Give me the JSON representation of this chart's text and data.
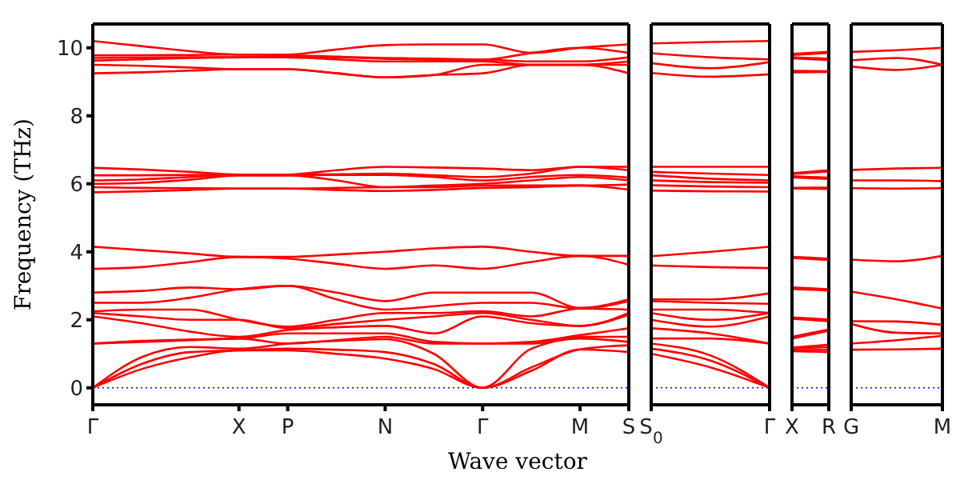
{
  "chart_data": [
    {
      "type": "line",
      "xlabel": "Wave vector",
      "ylabel": "Frequency (THz)",
      "categories": [
        "Γ",
        null,
        null,
        "X",
        "P",
        null,
        "N",
        null,
        "Γ",
        null,
        "M",
        "S"
      ],
      "ylim": [
        -0.5,
        10.7
      ],
      "yticks": [
        0,
        2,
        4,
        6,
        8,
        10
      ],
      "ref_lines": [
        {
          "axis": "y",
          "value": 0,
          "color": "#0000ff",
          "line_style": "dotted"
        }
      ],
      "series": [
        {
          "color": "#ff0000",
          "values": [
            0,
            0.55,
            0.9,
            1.1,
            1.1,
            1.0,
            0.86,
            0.55,
            0,
            0.5,
            1.13,
            1.05
          ]
        },
        {
          "color": "#ff0000",
          "values": [
            0,
            0.7,
            1.05,
            1.1,
            1.15,
            1.12,
            1.05,
            0.7,
            0,
            0.6,
            1.13,
            1.25
          ]
        },
        {
          "color": "#ff0000",
          "values": [
            0,
            0.9,
            1.2,
            1.15,
            1.3,
            1.38,
            1.43,
            1.0,
            0,
            1.15,
            1.45,
            1.35
          ]
        },
        {
          "color": "#ff0000",
          "values": [
            1.3,
            1.35,
            1.4,
            1.45,
            1.3,
            1.4,
            1.5,
            1.3,
            1.3,
            1.3,
            1.5,
            1.5
          ]
        },
        {
          "color": "#ff0000",
          "values": [
            1.3,
            1.38,
            1.42,
            1.45,
            1.6,
            1.6,
            1.6,
            1.35,
            1.3,
            1.35,
            1.55,
            1.75
          ]
        },
        {
          "color": "#ff0000",
          "values": [
            2.1,
            1.9,
            1.65,
            1.5,
            1.7,
            1.78,
            1.82,
            1.6,
            2.1,
            1.9,
            1.82,
            2.15
          ]
        },
        {
          "color": "#ff0000",
          "values": [
            2.2,
            2.1,
            2.0,
            2.0,
            1.75,
            1.88,
            2.0,
            2.1,
            2.2,
            2.0,
            1.82,
            2.2
          ]
        },
        {
          "color": "#ff0000",
          "values": [
            2.25,
            2.3,
            2.3,
            2.0,
            1.8,
            2.0,
            2.2,
            2.2,
            2.25,
            2.1,
            2.33,
            2.3
          ]
        },
        {
          "color": "#ff0000",
          "values": [
            2.5,
            2.5,
            2.65,
            2.9,
            3.0,
            2.6,
            2.3,
            2.4,
            2.5,
            2.5,
            2.33,
            2.55
          ]
        },
        {
          "color": "#ff0000",
          "values": [
            2.8,
            2.85,
            2.95,
            2.9,
            3.0,
            2.8,
            2.55,
            2.8,
            2.8,
            2.8,
            2.35,
            2.6
          ]
        },
        {
          "color": "#ff0000",
          "values": [
            3.5,
            3.55,
            3.7,
            3.85,
            3.8,
            3.65,
            3.5,
            3.6,
            3.5,
            3.7,
            3.88,
            3.62
          ]
        },
        {
          "color": "#ff0000",
          "values": [
            4.15,
            4.05,
            3.95,
            3.85,
            3.85,
            3.92,
            4.0,
            4.1,
            4.15,
            4.0,
            3.88,
            3.88
          ]
        },
        {
          "color": "#ff0000",
          "values": [
            5.75,
            5.78,
            5.82,
            5.86,
            5.86,
            5.82,
            5.79,
            5.82,
            5.88,
            5.9,
            5.95,
            5.83
          ]
        },
        {
          "color": "#ff0000",
          "values": [
            5.9,
            5.88,
            5.87,
            5.86,
            5.86,
            5.88,
            5.9,
            5.9,
            5.95,
            5.95,
            5.95,
            5.98
          ]
        },
        {
          "color": "#ff0000",
          "values": [
            6.0,
            6.03,
            6.12,
            6.25,
            6.25,
            6.1,
            5.9,
            5.95,
            6.0,
            6.1,
            6.2,
            6.1
          ]
        },
        {
          "color": "#ff0000",
          "values": [
            6.1,
            6.13,
            6.2,
            6.25,
            6.25,
            6.26,
            6.26,
            6.2,
            6.1,
            6.2,
            6.26,
            6.18
          ]
        },
        {
          "color": "#ff0000",
          "values": [
            6.25,
            6.25,
            6.26,
            6.27,
            6.27,
            6.28,
            6.3,
            6.25,
            6.2,
            6.3,
            6.5,
            6.4
          ]
        },
        {
          "color": "#ff0000",
          "values": [
            6.47,
            6.42,
            6.35,
            6.27,
            6.27,
            6.4,
            6.5,
            6.48,
            6.45,
            6.4,
            6.5,
            6.5
          ]
        },
        {
          "color": "#ff0000",
          "values": [
            9.25,
            9.28,
            9.33,
            9.37,
            9.37,
            9.25,
            9.13,
            9.2,
            9.25,
            9.5,
            9.5,
            9.25
          ]
        },
        {
          "color": "#ff0000",
          "values": [
            9.5,
            9.47,
            9.42,
            9.37,
            9.37,
            9.25,
            9.13,
            9.2,
            9.5,
            9.5,
            9.5,
            9.5
          ]
        },
        {
          "color": "#ff0000",
          "values": [
            9.62,
            9.66,
            9.7,
            9.72,
            9.72,
            9.66,
            9.6,
            9.6,
            9.6,
            9.5,
            9.5,
            9.6
          ]
        },
        {
          "color": "#ff0000",
          "values": [
            9.7,
            9.71,
            9.72,
            9.72,
            9.75,
            9.72,
            9.68,
            9.65,
            9.65,
            9.6,
            9.6,
            9.72
          ]
        },
        {
          "color": "#ff0000",
          "values": [
            9.78,
            9.78,
            9.79,
            9.8,
            9.78,
            9.74,
            9.7,
            9.68,
            9.65,
            9.85,
            10.0,
            9.85
          ]
        },
        {
          "color": "#ff0000",
          "values": [
            10.2,
            10.05,
            9.9,
            9.8,
            9.8,
            9.95,
            10.08,
            10.1,
            10.1,
            9.85,
            10.0,
            10.1
          ]
        }
      ]
    },
    {
      "type": "line",
      "tick_labels": "x",
      "categories": [
        "S$_{0}$",
        null,
        "Γ"
      ],
      "ylim": [
        -0.5,
        10.7
      ],
      "yticks": [
        0,
        2,
        4,
        6,
        8,
        10
      ],
      "ref_lines": [
        {
          "axis": "y",
          "value": 0,
          "color": "#0000ff",
          "line_style": "dotted"
        }
      ],
      "series": [
        {
          "color": "#ff0000",
          "values": [
            1.0,
            0.6,
            0
          ]
        },
        {
          "color": "#ff0000",
          "values": [
            1.15,
            0.8,
            0
          ]
        },
        {
          "color": "#ff0000",
          "values": [
            1.3,
            0.95,
            0
          ]
        },
        {
          "color": "#ff0000",
          "values": [
            1.45,
            1.45,
            1.3
          ]
        },
        {
          "color": "#ff0000",
          "values": [
            1.75,
            1.6,
            1.3
          ]
        },
        {
          "color": "#ff0000",
          "values": [
            2.0,
            1.8,
            2.1
          ]
        },
        {
          "color": "#ff0000",
          "values": [
            2.2,
            2.0,
            2.2
          ]
        },
        {
          "color": "#ff0000",
          "values": [
            2.3,
            2.3,
            2.2
          ]
        },
        {
          "color": "#ff0000",
          "values": [
            2.55,
            2.5,
            2.47
          ]
        },
        {
          "color": "#ff0000",
          "values": [
            2.6,
            2.6,
            2.78
          ]
        },
        {
          "color": "#ff0000",
          "values": [
            3.6,
            3.55,
            3.52
          ]
        },
        {
          "color": "#ff0000",
          "values": [
            3.87,
            4.0,
            4.15
          ]
        },
        {
          "color": "#ff0000",
          "values": [
            5.8,
            5.78,
            5.77
          ]
        },
        {
          "color": "#ff0000",
          "values": [
            5.96,
            5.92,
            5.9
          ]
        },
        {
          "color": "#ff0000",
          "values": [
            6.1,
            6.05,
            6.03
          ]
        },
        {
          "color": "#ff0000",
          "values": [
            6.25,
            6.15,
            6.1
          ]
        },
        {
          "color": "#ff0000",
          "values": [
            6.35,
            6.3,
            6.26
          ]
        },
        {
          "color": "#ff0000",
          "values": [
            6.5,
            6.5,
            6.5
          ]
        },
        {
          "color": "#ff0000",
          "values": [
            9.26,
            9.15,
            9.22
          ]
        },
        {
          "color": "#ff0000",
          "values": [
            9.55,
            9.4,
            9.58
          ]
        },
        {
          "color": "#ff0000",
          "values": [
            9.84,
            9.72,
            9.66
          ]
        },
        {
          "color": "#ff0000",
          "values": [
            10.13,
            10.17,
            10.2
          ]
        }
      ]
    },
    {
      "type": "line",
      "tick_labels": "x",
      "categories": [
        "X",
        "R"
      ],
      "ylim": [
        -0.5,
        10.7
      ],
      "yticks": [
        0,
        2,
        4,
        6,
        8,
        10
      ],
      "ref_lines": [
        {
          "axis": "y",
          "value": 0,
          "color": "#0000ff",
          "line_style": "dotted"
        }
      ],
      "series": [
        {
          "color": "#ff0000",
          "values": [
            1.08,
            1.05
          ]
        },
        {
          "color": "#ff0000",
          "values": [
            1.1,
            1.12
          ]
        },
        {
          "color": "#ff0000",
          "values": [
            1.15,
            1.2
          ]
        },
        {
          "color": "#ff0000",
          "values": [
            1.18,
            1.27
          ]
        },
        {
          "color": "#ff0000",
          "values": [
            1.45,
            1.68
          ]
        },
        {
          "color": "#ff0000",
          "values": [
            1.5,
            1.72
          ]
        },
        {
          "color": "#ff0000",
          "values": [
            2.03,
            1.96
          ]
        },
        {
          "color": "#ff0000",
          "values": [
            2.07,
            2.01
          ]
        },
        {
          "color": "#ff0000",
          "values": [
            2.91,
            2.86
          ]
        },
        {
          "color": "#ff0000",
          "values": [
            2.95,
            2.9
          ]
        },
        {
          "color": "#ff0000",
          "values": [
            3.82,
            3.76
          ]
        },
        {
          "color": "#ff0000",
          "values": [
            3.85,
            3.8
          ]
        },
        {
          "color": "#ff0000",
          "values": [
            5.86,
            5.85
          ]
        },
        {
          "color": "#ff0000",
          "values": [
            5.88,
            5.89
          ]
        },
        {
          "color": "#ff0000",
          "values": [
            6.19,
            6.14
          ]
        },
        {
          "color": "#ff0000",
          "values": [
            6.22,
            6.18
          ]
        },
        {
          "color": "#ff0000",
          "values": [
            6.29,
            6.36
          ]
        },
        {
          "color": "#ff0000",
          "values": [
            6.31,
            6.4
          ]
        },
        {
          "color": "#ff0000",
          "values": [
            9.28,
            9.29
          ]
        },
        {
          "color": "#ff0000",
          "values": [
            9.32,
            9.31
          ]
        },
        {
          "color": "#ff0000",
          "values": [
            9.69,
            9.64
          ]
        },
        {
          "color": "#ff0000",
          "values": [
            9.72,
            9.68
          ]
        },
        {
          "color": "#ff0000",
          "values": [
            9.79,
            9.85
          ]
        },
        {
          "color": "#ff0000",
          "values": [
            9.82,
            9.88
          ]
        }
      ]
    },
    {
      "type": "line",
      "tick_labels": "x",
      "categories": [
        "G",
        null,
        "M"
      ],
      "ylim": [
        -0.5,
        10.7
      ],
      "yticks": [
        0,
        2,
        4,
        6,
        8,
        10
      ],
      "ref_lines": [
        {
          "axis": "y",
          "value": 0,
          "color": "#0000ff",
          "line_style": "dotted"
        }
      ],
      "series": [
        {
          "color": "#ff0000",
          "values": [
            1.12,
            1.13,
            1.15
          ]
        },
        {
          "color": "#ff0000",
          "values": [
            1.3,
            1.4,
            1.53
          ]
        },
        {
          "color": "#ff0000",
          "values": [
            1.88,
            1.62,
            1.6
          ]
        },
        {
          "color": "#ff0000",
          "values": [
            1.96,
            1.95,
            1.85
          ]
        },
        {
          "color": "#ff0000",
          "values": [
            2.83,
            2.6,
            2.33
          ]
        },
        {
          "color": "#ff0000",
          "values": [
            3.77,
            3.72,
            3.88
          ]
        },
        {
          "color": "#ff0000",
          "values": [
            5.87,
            5.86,
            5.87
          ]
        },
        {
          "color": "#ff0000",
          "values": [
            6.1,
            6.1,
            6.08
          ]
        },
        {
          "color": "#ff0000",
          "values": [
            6.41,
            6.45,
            6.47
          ]
        },
        {
          "color": "#ff0000",
          "values": [
            9.45,
            9.35,
            9.5
          ]
        },
        {
          "color": "#ff0000",
          "values": [
            9.63,
            9.7,
            9.5
          ]
        },
        {
          "color": "#ff0000",
          "values": [
            9.88,
            9.93,
            10.0
          ]
        }
      ]
    }
  ]
}
